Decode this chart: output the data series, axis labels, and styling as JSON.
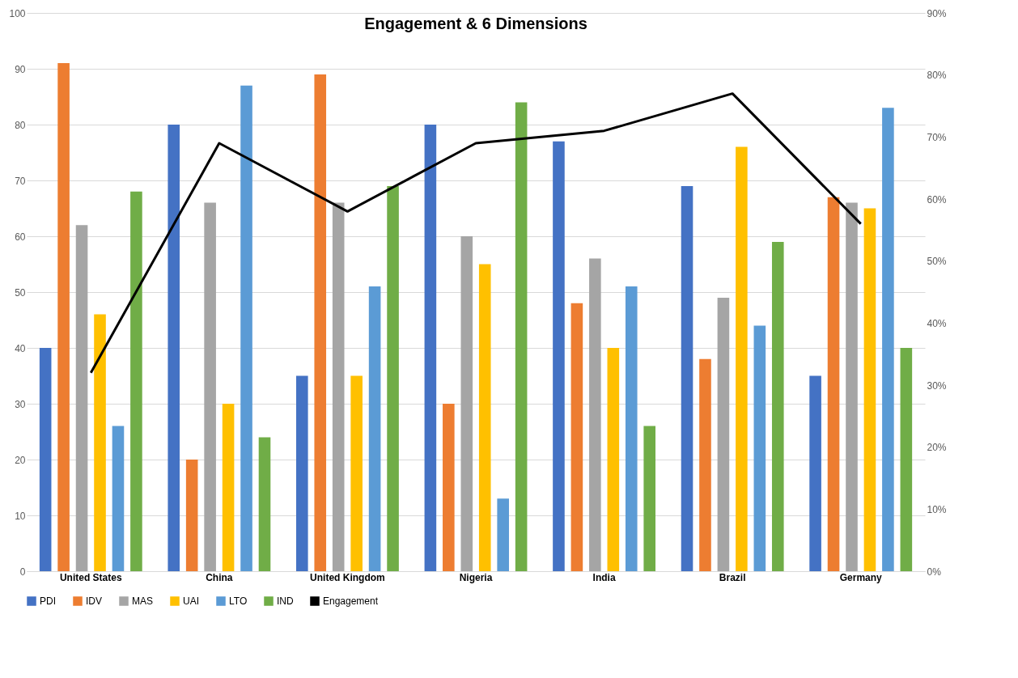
{
  "chart_data": {
    "type": "bar",
    "title": "Engagement & 6 Dimensions",
    "categories": [
      "United States",
      "China",
      "United Kingdom",
      "Nigeria",
      "India",
      "Brazil",
      "Germany"
    ],
    "series": [
      {
        "name": "PDI",
        "color": "#4472c4",
        "values": [
          40,
          80,
          35,
          80,
          77,
          69,
          35
        ]
      },
      {
        "name": "IDV",
        "color": "#ed7d31",
        "values": [
          91,
          20,
          89,
          30,
          48,
          38,
          67
        ]
      },
      {
        "name": "MAS",
        "color": "#a5a5a5",
        "values": [
          62,
          66,
          66,
          60,
          56,
          49,
          66
        ]
      },
      {
        "name": "UAI",
        "color": "#ffc000",
        "values": [
          46,
          30,
          35,
          55,
          40,
          76,
          65
        ]
      },
      {
        "name": "LTO",
        "color": "#5b9bd5",
        "values": [
          26,
          87,
          51,
          13,
          51,
          44,
          83
        ]
      },
      {
        "name": "IND",
        "color": "#70ad47",
        "values": [
          68,
          24,
          69,
          84,
          26,
          59,
          40
        ]
      },
      {
        "name": "Engagement",
        "type": "line",
        "axis": "y2",
        "color": "#000000",
        "values": [
          32,
          69,
          58,
          69,
          71,
          77,
          56
        ]
      }
    ],
    "ylim": [
      0,
      100
    ],
    "yticks": [
      0,
      10,
      20,
      30,
      40,
      50,
      60,
      70,
      80,
      90,
      100
    ],
    "y2lim": [
      0,
      90
    ],
    "y2ticks": [
      {
        "value": 0,
        "label": "0%"
      },
      {
        "value": 10,
        "label": "10%"
      },
      {
        "value": 20,
        "label": "20%"
      },
      {
        "value": 30,
        "label": "30%"
      },
      {
        "value": 40,
        "label": "40%"
      },
      {
        "value": 50,
        "label": "50%"
      },
      {
        "value": 60,
        "label": "60%"
      },
      {
        "value": 70,
        "label": "70%"
      },
      {
        "value": 80,
        "label": "80%"
      },
      {
        "value": 90,
        "label": "90%"
      }
    ],
    "grid": "y",
    "legend": "bottom"
  }
}
